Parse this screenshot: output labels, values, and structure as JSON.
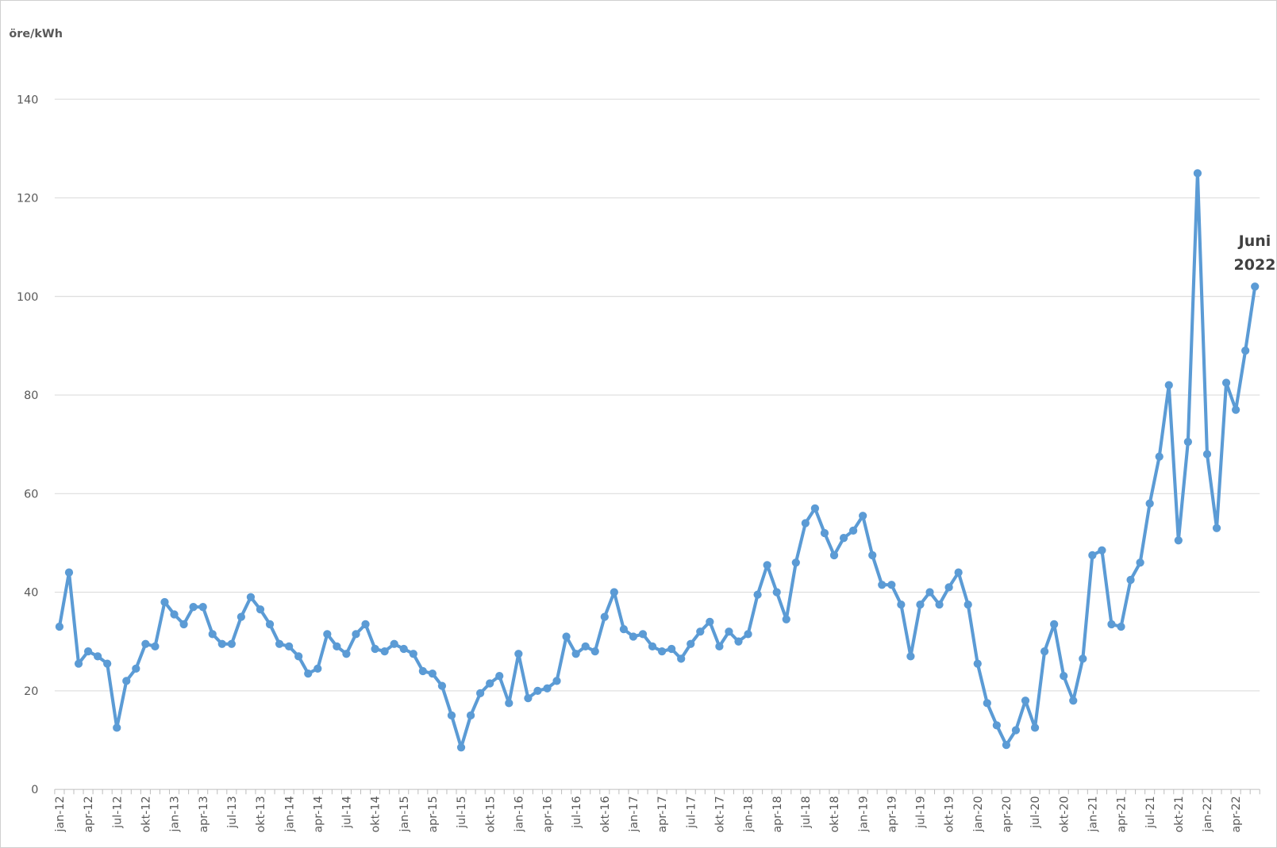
{
  "chart_data": {
    "type": "line",
    "y_label": "öre/kWh",
    "annotation": "Juni 2022",
    "color": "#5b9bd5",
    "grid": true,
    "ylim": [
      0,
      140
    ],
    "yticks": [
      0,
      20,
      40,
      60,
      80,
      100,
      120,
      140
    ],
    "categories": [
      "jan-12",
      null,
      null,
      "apr-12",
      null,
      null,
      "jul-12",
      null,
      null,
      "okt-12",
      null,
      null,
      "jan-13",
      null,
      null,
      "apr-13",
      null,
      null,
      "jul-13",
      null,
      null,
      "okt-13",
      null,
      null,
      "jan-14",
      null,
      null,
      "apr-14",
      null,
      null,
      "jul-14",
      null,
      null,
      "okt-14",
      null,
      null,
      "jan-15",
      null,
      null,
      "apr-15",
      null,
      null,
      "jul-15",
      null,
      null,
      "okt-15",
      null,
      null,
      "jan-16",
      null,
      null,
      "apr-16",
      null,
      null,
      "jul-16",
      null,
      null,
      "okt-16",
      null,
      null,
      "jan-17",
      null,
      null,
      "apr-17",
      null,
      null,
      "jul-17",
      null,
      null,
      "okt-17",
      null,
      null,
      "jan-18",
      null,
      null,
      "apr-18",
      null,
      null,
      "jul-18",
      null,
      null,
      "okt-18",
      null,
      null,
      "jan-19",
      null,
      null,
      "apr-19",
      null,
      null,
      "jul-19",
      null,
      null,
      "okt-19",
      null,
      null,
      "jan-20",
      null,
      null,
      "apr-20",
      null,
      null,
      "jul-20",
      null,
      null,
      "okt-20",
      null,
      null,
      "jan-21",
      null,
      null,
      "apr-21",
      null,
      null,
      "jul-21",
      null,
      null,
      "okt-21",
      null,
      null,
      "jan-22",
      null,
      null,
      "apr-22",
      null,
      null
    ],
    "values": [
      33,
      44,
      25.5,
      28,
      27,
      25.5,
      12.5,
      22,
      24.5,
      29.5,
      29,
      38,
      35.5,
      33.5,
      37,
      37,
      31.5,
      29.5,
      29.5,
      35,
      39,
      36.5,
      33.5,
      29.5,
      29,
      27,
      23.5,
      24.5,
      31.5,
      29,
      27.5,
      31.5,
      33.5,
      28.5,
      28,
      29.5,
      28.5,
      27.5,
      24,
      23.5,
      21,
      15,
      8.5,
      15,
      19.5,
      21.5,
      23,
      17.5,
      27.5,
      18.5,
      20,
      20.5,
      22,
      31,
      27.5,
      29,
      28,
      35,
      40,
      32.5,
      31,
      31.5,
      29,
      28,
      28.5,
      26.5,
      29.5,
      32,
      34,
      29,
      32,
      30,
      31.5,
      39.5,
      45.5,
      40,
      34.5,
      46,
      54,
      57,
      52,
      47.5,
      51,
      52.5,
      55.5,
      47.5,
      41.5,
      41.5,
      37.5,
      27,
      37.5,
      40,
      37.5,
      41,
      44,
      37.5,
      25.5,
      17.5,
      13,
      9,
      12,
      18,
      12.5,
      28,
      33.5,
      23,
      18,
      26.5,
      47.5,
      48.5,
      33.5,
      33,
      42.5,
      46,
      58,
      67.5,
      82,
      50.5,
      70.5,
      125,
      68,
      53,
      82.5,
      77,
      89,
      102
    ]
  }
}
